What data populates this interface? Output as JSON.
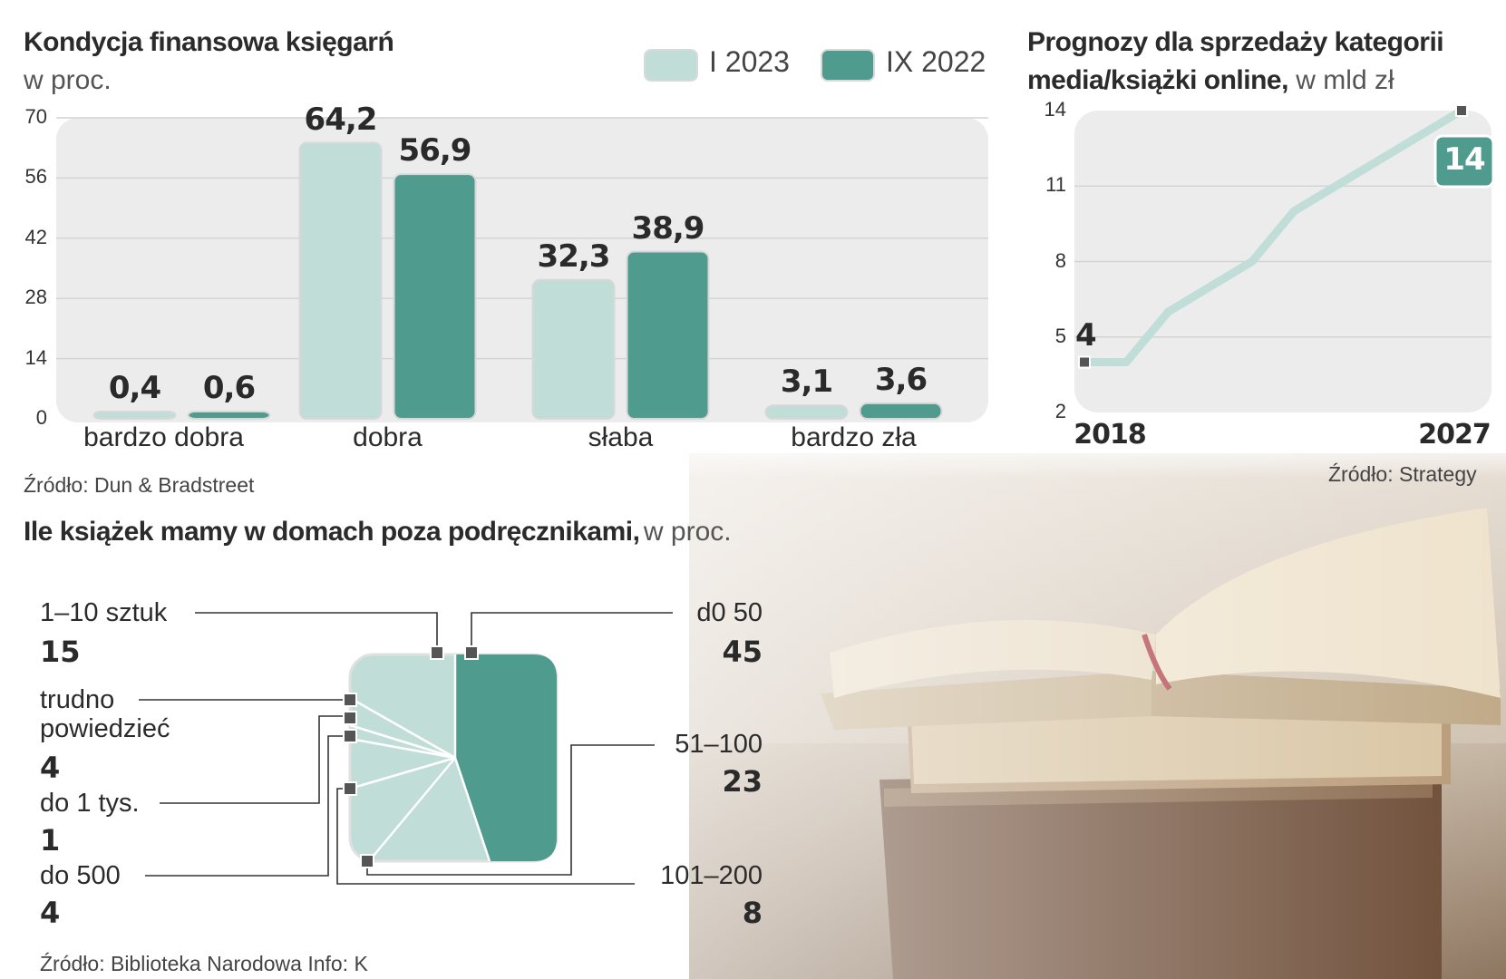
{
  "colors": {
    "light": "#c1ddd7",
    "dark": "#4f9b8e",
    "bg_panel": "#ececec",
    "grid": "#d4d4d4"
  },
  "bar_chart": {
    "title": "Kondycja finansowa księgarń",
    "subtitle": "w proc.",
    "source": "Źródło: Dun & Bradstreet",
    "legend": [
      "I 2023",
      "IX 2022"
    ]
  },
  "line_chart": {
    "title_line1": "Prognozy dla sprzedaży kategorii",
    "title_line2": "media/książki online,",
    "unit": "w mld zł",
    "source": "Źródło: Strategy",
    "start_label": "4",
    "end_label": "14"
  },
  "donut_chart": {
    "title": "Ile książek mamy w domach poza podręcznikami,",
    "unit": "w proc.",
    "source": "Źródło: Biblioteka Narodowa Info: K",
    "labels": [
      {
        "name": "1–10 sztuk",
        "value": "15"
      },
      {
        "name": "trudno",
        "name2": "powiedzieć",
        "value": "4"
      },
      {
        "name": "do 1 tys.",
        "value": "1"
      },
      {
        "name": "do 500",
        "value": "4"
      },
      {
        "name": "d0 50",
        "value": "45"
      },
      {
        "name": "51–100",
        "value": "23"
      },
      {
        "name": "101–200",
        "value": "8"
      }
    ]
  },
  "chart_data": [
    {
      "type": "bar",
      "title": "Kondycja finansowa księgarń",
      "ylabel": "w proc.",
      "categories": [
        "bardzo dobra",
        "dobra",
        "słaba",
        "bardzo zła"
      ],
      "series": [
        {
          "name": "I 2023",
          "values": [
            0.4,
            64.2,
            32.3,
            3.1
          ],
          "labels": [
            "0,4",
            "64,2",
            "32,3",
            "3,1"
          ]
        },
        {
          "name": "IX 2022",
          "values": [
            0.6,
            56.9,
            38.9,
            3.6
          ],
          "labels": [
            "0,6",
            "56,9",
            "38,9",
            "3,6"
          ]
        }
      ],
      "yticks": [
        0,
        14,
        28,
        42,
        56,
        70
      ],
      "ylim": [
        0,
        70
      ],
      "grid": true,
      "legend": "top-right"
    },
    {
      "type": "line",
      "title": "Prognozy dla sprzedaży kategorii media/książki online",
      "ylabel": "w mld zł",
      "x": [
        2018,
        2019,
        2020,
        2021,
        2022,
        2023,
        2024,
        2025,
        2026,
        2027
      ],
      "y": [
        4,
        4,
        6,
        7,
        8,
        10,
        11,
        12,
        13,
        14
      ],
      "xticks": [
        "2018",
        "2027"
      ],
      "yticks": [
        2,
        5,
        8,
        11,
        14
      ],
      "ylim": [
        2,
        14
      ],
      "grid": true
    },
    {
      "type": "pie",
      "title": "Ile książek mamy w domach poza podręcznikami",
      "ylabel": "w proc.",
      "categories": [
        "d0 50",
        "51–100",
        "101–200",
        "do 500",
        "do 1 tys.",
        "trudno powiedzieć",
        "1–10 sztuk"
      ],
      "values": [
        45,
        23,
        8,
        4,
        1,
        4,
        15
      ]
    }
  ]
}
